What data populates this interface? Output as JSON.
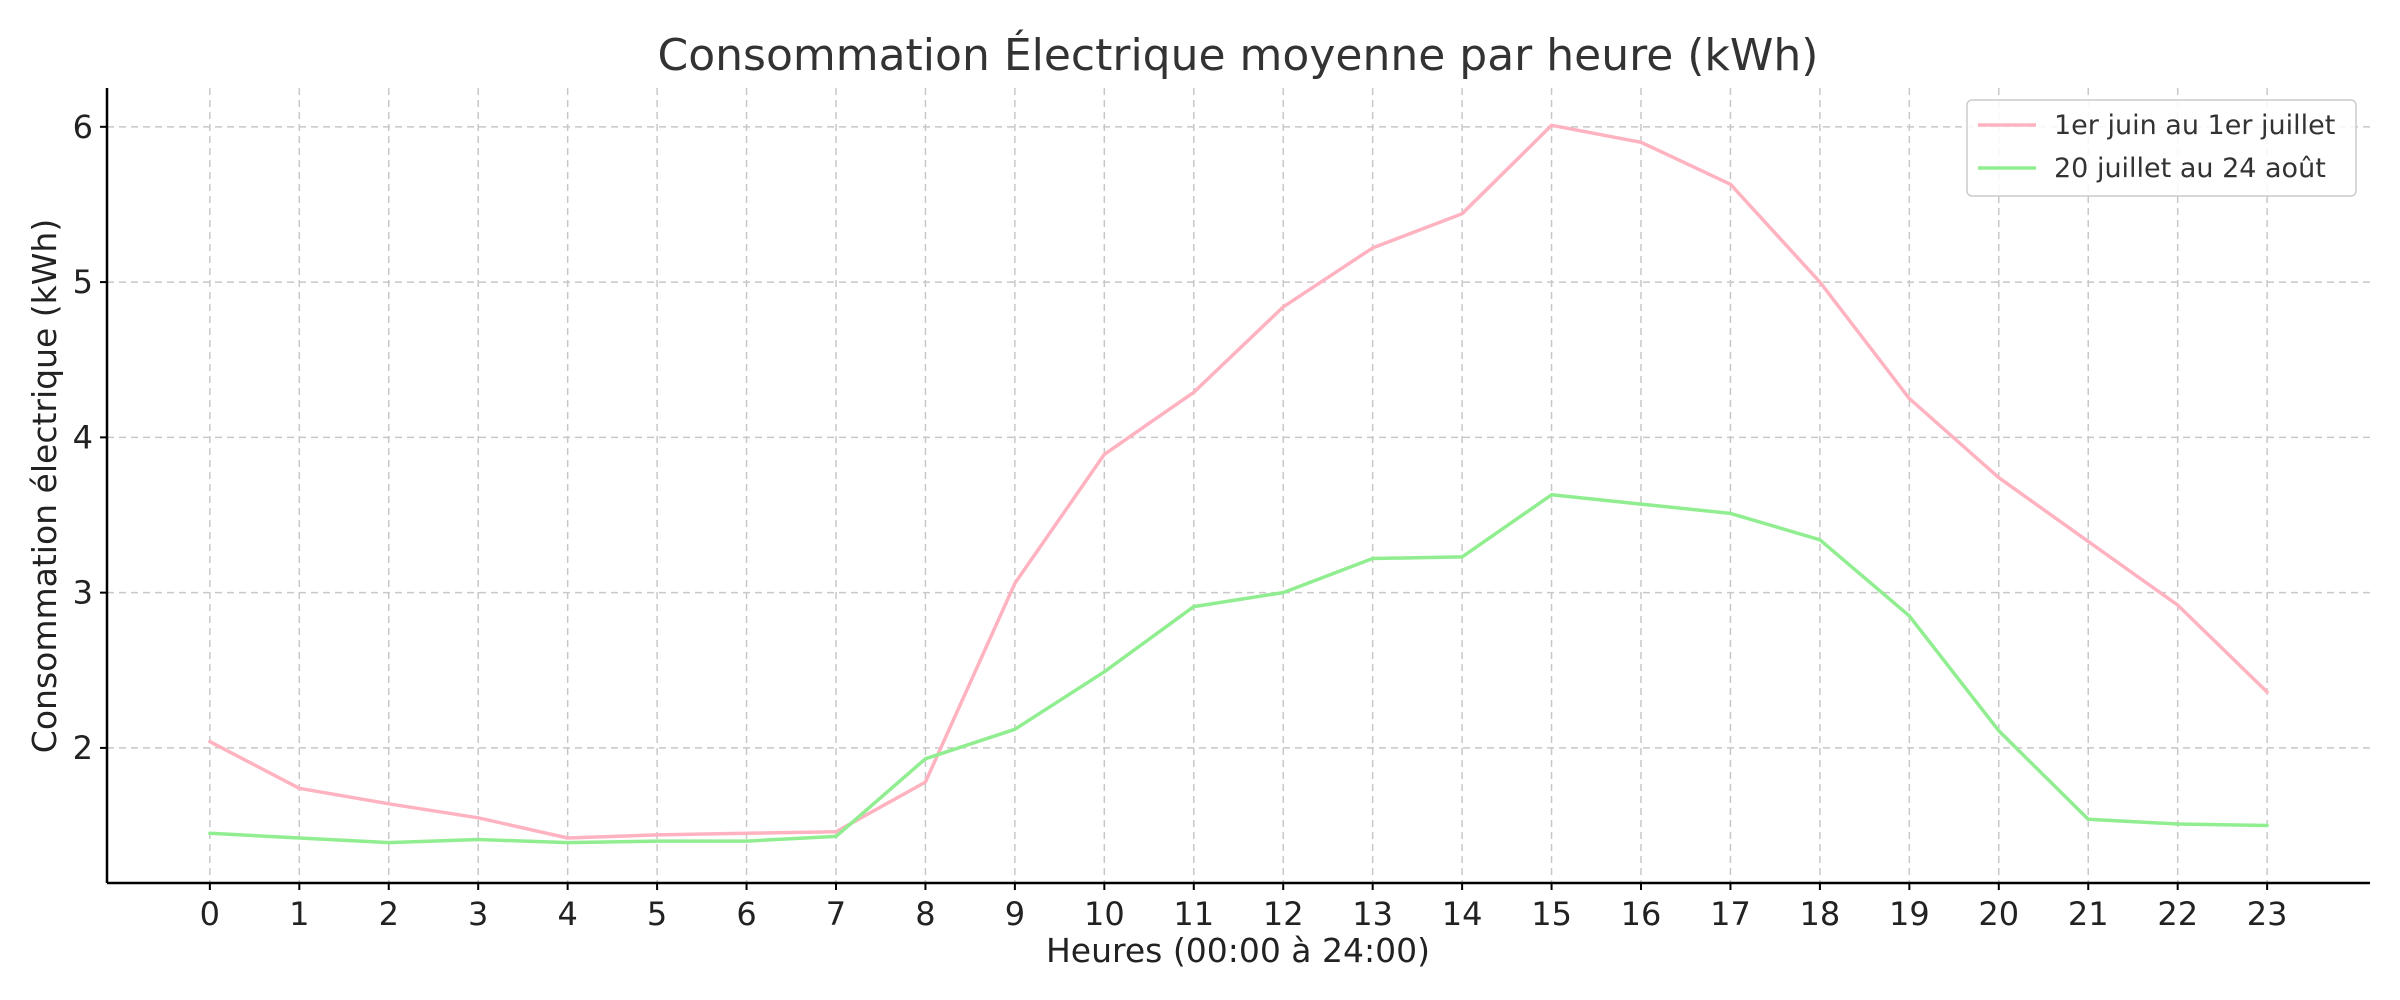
{
  "chart_data": {
    "type": "line",
    "title": "Consommation Électrique moyenne par heure (kWh)",
    "xlabel": "Heures (00:00 à 24:00)",
    "ylabel": "Consommation électrique (kWh)",
    "x": [
      0,
      1,
      2,
      3,
      4,
      5,
      6,
      7,
      8,
      9,
      10,
      11,
      12,
      13,
      14,
      15,
      16,
      17,
      18,
      19,
      20,
      21,
      22,
      23
    ],
    "x_tick_labels": [
      "0",
      "1",
      "2",
      "3",
      "4",
      "5",
      "6",
      "7",
      "8",
      "9",
      "10",
      "11",
      "12",
      "13",
      "14",
      "15",
      "16",
      "17",
      "18",
      "19",
      "20",
      "21",
      "22",
      "23"
    ],
    "y_ticks": [
      2,
      3,
      4,
      5,
      6
    ],
    "y_tick_labels": [
      "2",
      "3",
      "4",
      "5",
      "6"
    ],
    "xlim": [
      -1.15,
      24.15
    ],
    "ylim": [
      1.13,
      6.25
    ],
    "grid": true,
    "legend_position": "top-right",
    "series": [
      {
        "name": "1er juin au 1er juillet",
        "color": "#ffb3c1",
        "values": [
          2.04,
          1.74,
          1.64,
          1.55,
          1.42,
          1.44,
          1.45,
          1.46,
          1.78,
          3.06,
          3.89,
          4.29,
          4.84,
          5.22,
          5.44,
          6.01,
          5.9,
          5.63,
          5.0,
          4.25,
          3.74,
          3.33,
          2.92,
          2.36
        ]
      },
      {
        "name": "20 juillet au 24 août",
        "color": "#90ee90",
        "values": [
          1.45,
          1.42,
          1.39,
          1.41,
          1.39,
          1.4,
          1.4,
          1.43,
          1.93,
          2.12,
          2.49,
          2.91,
          3.0,
          3.22,
          3.23,
          3.63,
          3.57,
          3.51,
          3.34,
          2.85,
          2.11,
          1.54,
          1.51,
          1.5
        ]
      }
    ]
  }
}
